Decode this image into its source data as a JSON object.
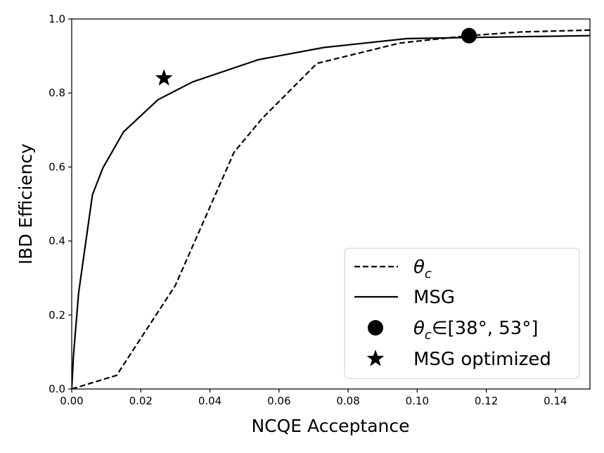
{
  "chart_data": {
    "type": "line",
    "title": "",
    "xlabel": "NCQE Acceptance",
    "ylabel": "IBD Efficiency",
    "xlim": [
      0,
      0.15
    ],
    "ylim": [
      0,
      1.0
    ],
    "xticks": [
      {
        "value": 0.0,
        "label": "0.00"
      },
      {
        "value": 0.02,
        "label": "0.02"
      },
      {
        "value": 0.04,
        "label": "0.04"
      },
      {
        "value": 0.06,
        "label": "0.06"
      },
      {
        "value": 0.08,
        "label": "0.08"
      },
      {
        "value": 0.1,
        "label": "0.10"
      },
      {
        "value": 0.12,
        "label": "0.12"
      },
      {
        "value": 0.14,
        "label": "0.14"
      }
    ],
    "yticks": [
      {
        "value": 0.0,
        "label": "0.0"
      },
      {
        "value": 0.2,
        "label": "0.2"
      },
      {
        "value": 0.4,
        "label": "0.4"
      },
      {
        "value": 0.6,
        "label": "0.6"
      },
      {
        "value": 0.8,
        "label": "0.8"
      },
      {
        "value": 1.0,
        "label": "1.0"
      }
    ],
    "grid": false,
    "legend_position": "lower-right",
    "series": [
      {
        "name": "theta_c",
        "label_main": "θ",
        "label_sub": "c",
        "style": "dashed",
        "color": "#000000",
        "x": [
          0.0,
          0.013,
          0.03,
          0.047,
          0.055,
          0.071,
          0.095,
          0.115,
          0.13,
          0.15
        ],
        "y": [
          0.0,
          0.037,
          0.28,
          0.64,
          0.73,
          0.88,
          0.935,
          0.955,
          0.965,
          0.97
        ]
      },
      {
        "name": "MSG",
        "label_main": "MSG",
        "label_sub": "",
        "style": "solid",
        "color": "#000000",
        "x": [
          0.0,
          0.0005,
          0.002,
          0.006,
          0.009,
          0.015,
          0.025,
          0.035,
          0.054,
          0.073,
          0.097,
          0.115,
          0.15
        ],
        "y": [
          0.0,
          0.09,
          0.26,
          0.525,
          0.597,
          0.695,
          0.782,
          0.83,
          0.89,
          0.923,
          0.947,
          0.95,
          0.955
        ]
      }
    ],
    "markers": [
      {
        "name": "theta_c_range",
        "shape": "circle",
        "x": 0.115,
        "y": 0.955,
        "label_main": "θ",
        "label_sub": "c",
        "label_rest": "∈[38°, 53°]"
      },
      {
        "name": "MSG_optimized",
        "shape": "star",
        "x": 0.0267,
        "y": 0.84,
        "label_main": "MSG optimized"
      }
    ]
  },
  "colors": {
    "line": "#000000",
    "background": "#ffffff",
    "legend_border": "#cccccc"
  }
}
